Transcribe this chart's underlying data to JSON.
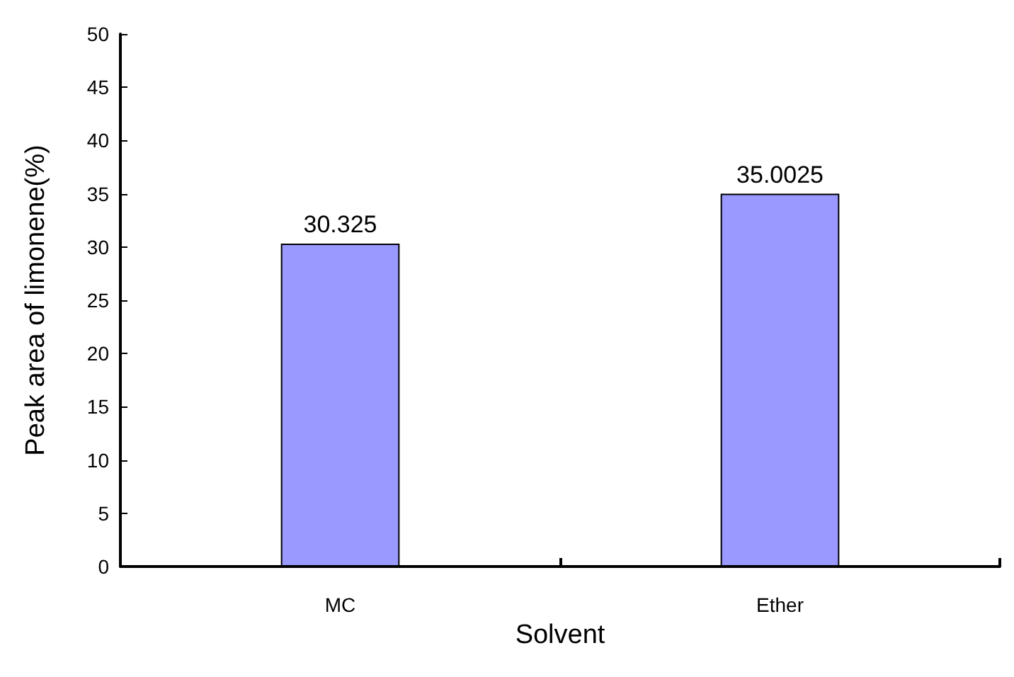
{
  "chart_data": {
    "type": "bar",
    "xlabel": "Solvent",
    "ylabel": "Peak area of limonene(%)",
    "categories": [
      "MC",
      "Ether"
    ],
    "values": [
      30.325,
      35.0025
    ],
    "color": "#9999ff",
    "data_labels": true,
    "ylim": [
      0,
      50
    ],
    "yticks": [
      0,
      5,
      10,
      15,
      20,
      25,
      30,
      35,
      40,
      45,
      50
    ],
    "grid": false
  }
}
